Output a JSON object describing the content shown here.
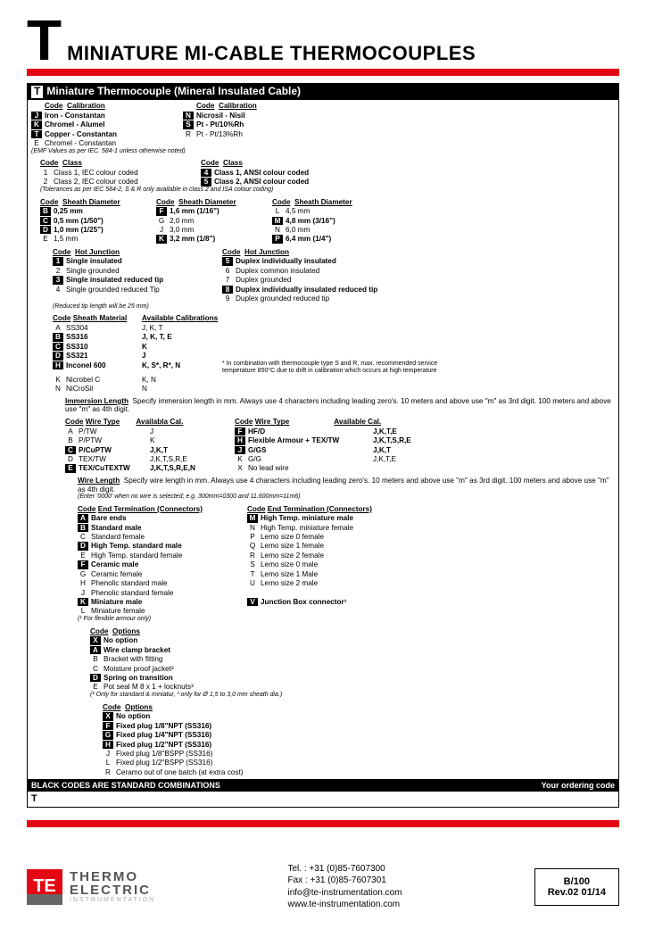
{
  "title_t": "T",
  "title": "MINIATURE MI-CABLE THERMOCOUPLES",
  "header": "Miniature Thermocouple (Mineral Insulated Cable)",
  "calib": {
    "h1": "Code",
    "h2": "Calibration",
    "h3": "Code",
    "h4": "Calibration",
    "r": [
      [
        "J",
        "Iron - Constantan",
        "N",
        "Nicrosil - Nisil",
        true,
        true
      ],
      [
        "K",
        "Chromel - Alumel",
        "S",
        "Pt - Pt/10%Rh",
        true,
        true
      ],
      [
        "T",
        "Copper - Constantan",
        "R",
        "Pt - Pt/13%Rh",
        true,
        false
      ],
      [
        "E",
        "Chromel - Constantan",
        "",
        "",
        false,
        false
      ]
    ],
    "note": "(EMF Values as per IEC. 584-1 unless otherwise noted)"
  },
  "class": {
    "h1": "Code",
    "h2": "Class",
    "h3": "Code",
    "h4": "Class",
    "r": [
      [
        "1",
        "Class 1, IEC colour coded",
        "4",
        "Class 1, ANSI colour coded"
      ],
      [
        "2",
        "Class 2, IEC colour coded",
        "5",
        "Class 2, ANSI colour coded"
      ]
    ],
    "note": "(Tolerances as per IEC 584-2,   S & R only available in class 2 and ISA colour coding)"
  },
  "sheath": {
    "h": "Sheath Diameter",
    "c1": [
      [
        "B",
        "0,25 mm",
        true
      ],
      [
        "C",
        "0,5 mm (1/50\")",
        true
      ],
      [
        "D",
        "1,0 mm (1/25\")",
        true
      ],
      [
        "E",
        "1,5 mm",
        false
      ]
    ],
    "c2": [
      [
        "F",
        "1,6 mm (1/16\")",
        true
      ],
      [
        "G",
        "2,0 mm",
        false
      ],
      [
        "J",
        "3,0 mm",
        false
      ],
      [
        "K",
        "3,2 mm (1/8\")",
        true
      ]
    ],
    "c3": [
      [
        "L",
        "4,5 mm",
        false
      ],
      [
        "M",
        "4,8 mm (3/16\")",
        true
      ],
      [
        "N",
        "6,0 mm",
        false
      ],
      [
        "P",
        "6,4 mm (1/4\")",
        true
      ]
    ]
  },
  "hot": {
    "h": "Hot Junction",
    "c1": [
      [
        "1",
        "Single insulated",
        true
      ],
      [
        "2",
        "Single grounded",
        false
      ],
      [
        "3",
        "Single insulated reduced tip",
        true
      ],
      [
        "4",
        "Single grounded reduced Tip",
        false
      ]
    ],
    "c2": [
      [
        "5",
        "Duplex individually insulated",
        true
      ],
      [
        "6",
        "Duplex common insulated",
        false
      ],
      [
        "7",
        "Duplex grounded",
        false
      ],
      [
        "8",
        "Duplex individually insulated reduced tip",
        true
      ],
      [
        "9",
        "Duplex grounded reduced tip",
        false
      ]
    ],
    "note": "(Reduced tip length will be 25 mm)"
  },
  "mat": {
    "h1": "Sheath Material",
    "h2": "Available Calibrations",
    "r": [
      [
        "A",
        "SS304",
        "J, K, T",
        false
      ],
      [
        "B",
        "SS316",
        "J, K, T, E",
        true
      ],
      [
        "C",
        "SS310",
        "K",
        true
      ],
      [
        "D",
        "SS321",
        "J",
        true
      ],
      [
        "H",
        "Inconel 600",
        "K, S*, R*, N",
        true
      ],
      [
        "K",
        "Nicrobel C",
        "K, N",
        false
      ],
      [
        "N",
        "NiCroSil",
        "N",
        false
      ]
    ],
    "note": "*  In combination with thermocouple type S and R, max. recommended service temperature 850°C due to drift in calibration which occurs at high temperature"
  },
  "imm": {
    "h": "Immersion Length",
    "txt": "Specify immersion length in mm. Always use 4 characters including leading zero's. 10 meters and above use \"m\" as 3rd digit. 100 meters and above use \"m\" as 4th digit."
  },
  "wire": {
    "h1": "Wire Type",
    "h2": "Availabla Cal.",
    "h3": "Code",
    "h4": "Wire Type",
    "h5": "Available Cal.",
    "c1": [
      [
        "A",
        "P/TW",
        "J",
        false
      ],
      [
        "B",
        "P/PTW",
        "K",
        false
      ],
      [
        "C",
        "P/CuPTW",
        "J,K,T",
        true
      ],
      [
        "D",
        "TEX/TW",
        "J,K,T,S,R,E",
        false
      ],
      [
        "E",
        "TEX/CuTEXTW",
        "J,K,T,S,R,E,N",
        true
      ]
    ],
    "c2": [
      [
        "F",
        "HF/D",
        "J,K,T,E",
        true
      ],
      [
        "H",
        "Flexible Armour + TEX/TW",
        "J,K,T,S,R,E",
        true
      ],
      [
        "J",
        "G/GS",
        "J,K,T",
        true
      ],
      [
        "K",
        "G/G",
        "J,K,T,E",
        false
      ],
      [
        "X",
        "No lead wire",
        "",
        false
      ]
    ]
  },
  "wlen": {
    "h": "Wire Length",
    "txt": "Specify wire length in mm. Always use 4 characters including leading zero's. 10 meters and above use \"m\" as 3rd digit. 100 meters and above use \"m\" as 4th digit.",
    "note": "(Enter '0000' when no wire is selected; e.g. 300mm=0300 and 11.600mm=11m6)"
  },
  "term": {
    "h": "End Termination (Connectors)",
    "c1": [
      [
        "A",
        "Bare ends",
        true
      ],
      [
        "B",
        "Standard male",
        true
      ],
      [
        "C",
        "Standard female",
        false
      ],
      [
        "D",
        "High Temp. standard male",
        true
      ],
      [
        "E",
        "High Temp. standard female",
        false
      ],
      [
        "F",
        "Ceramic male",
        true
      ],
      [
        "G",
        "Ceramic female",
        false
      ],
      [
        "H",
        "Phenolic standard male",
        false
      ],
      [
        "J",
        "Phenolic standard female",
        false
      ],
      [
        "K",
        "Miniature male",
        true
      ],
      [
        "L",
        "Miniature female",
        false
      ]
    ],
    "c2": [
      [
        "M",
        "High Temp. miniature male",
        true
      ],
      [
        "N",
        "High Temp. miniature female",
        false
      ],
      [
        "P",
        "Lemo size 0 female",
        false
      ],
      [
        "Q",
        "Lemo size 1 female",
        false
      ],
      [
        "R",
        "Lemo size 2 female",
        false
      ],
      [
        "S",
        "Lemo size 0 male",
        false
      ],
      [
        "T",
        "Lemo size 1 Male",
        false
      ],
      [
        "U",
        "Lemo size 2 male",
        false
      ],
      [
        "",
        "",
        false
      ],
      [
        "V",
        "Junction Box connector¹",
        true
      ]
    ],
    "note": "(¹ For flexible armour only)"
  },
  "opt1": {
    "h": "Options",
    "r": [
      [
        "X",
        "No option",
        true
      ],
      [
        "A",
        "Wire clamp bracket",
        true
      ],
      [
        "B",
        "Bracket with fitting",
        false
      ],
      [
        "C",
        "Moisture proof jacket²",
        false
      ],
      [
        "D",
        "Spring on transition",
        true
      ],
      [
        "E",
        "Pot seal M 8 x 1 + locknuts³",
        false
      ]
    ],
    "note": "(² Only for standard & miniatur,  ³ only for Ø 1,5 to 3,0 mm sheath dia.)"
  },
  "opt2": {
    "h": "Options",
    "r": [
      [
        "X",
        "No option",
        true
      ],
      [
        "F",
        "Fixed plug 1/8\"NPT (SS316)",
        true
      ],
      [
        "G",
        "Fixed plug 1/4\"NPT (SS316)",
        true
      ],
      [
        "H",
        "Fixed plug 1/2\"NPT (SS316)",
        true
      ],
      [
        "J",
        "Fixed plug 1/8\"BSPP (SS316)",
        false
      ],
      [
        "L",
        "Fixed plug 1/2\"BSPP (SS316)",
        false
      ],
      [
        "R",
        "Ceramo out of one batch (at extra cost)",
        false
      ]
    ]
  },
  "stdnote": "BLACK CODES ARE STANDARD COMBINATIONS",
  "ordering": "Your ordering code",
  "footer": {
    "tel": "Tel. : +31 (0)85-7607300",
    "fax": "Fax : +31 (0)85-7607301",
    "email": "info@te-instrumentation.com",
    "web": "www.te-instrumentation.com",
    "code": "B/100",
    "rev": "Rev.02   01/14",
    "brand1": "THERMO",
    "brand2": "ELECTRIC",
    "brand3": "INSTRUMENTATION"
  }
}
